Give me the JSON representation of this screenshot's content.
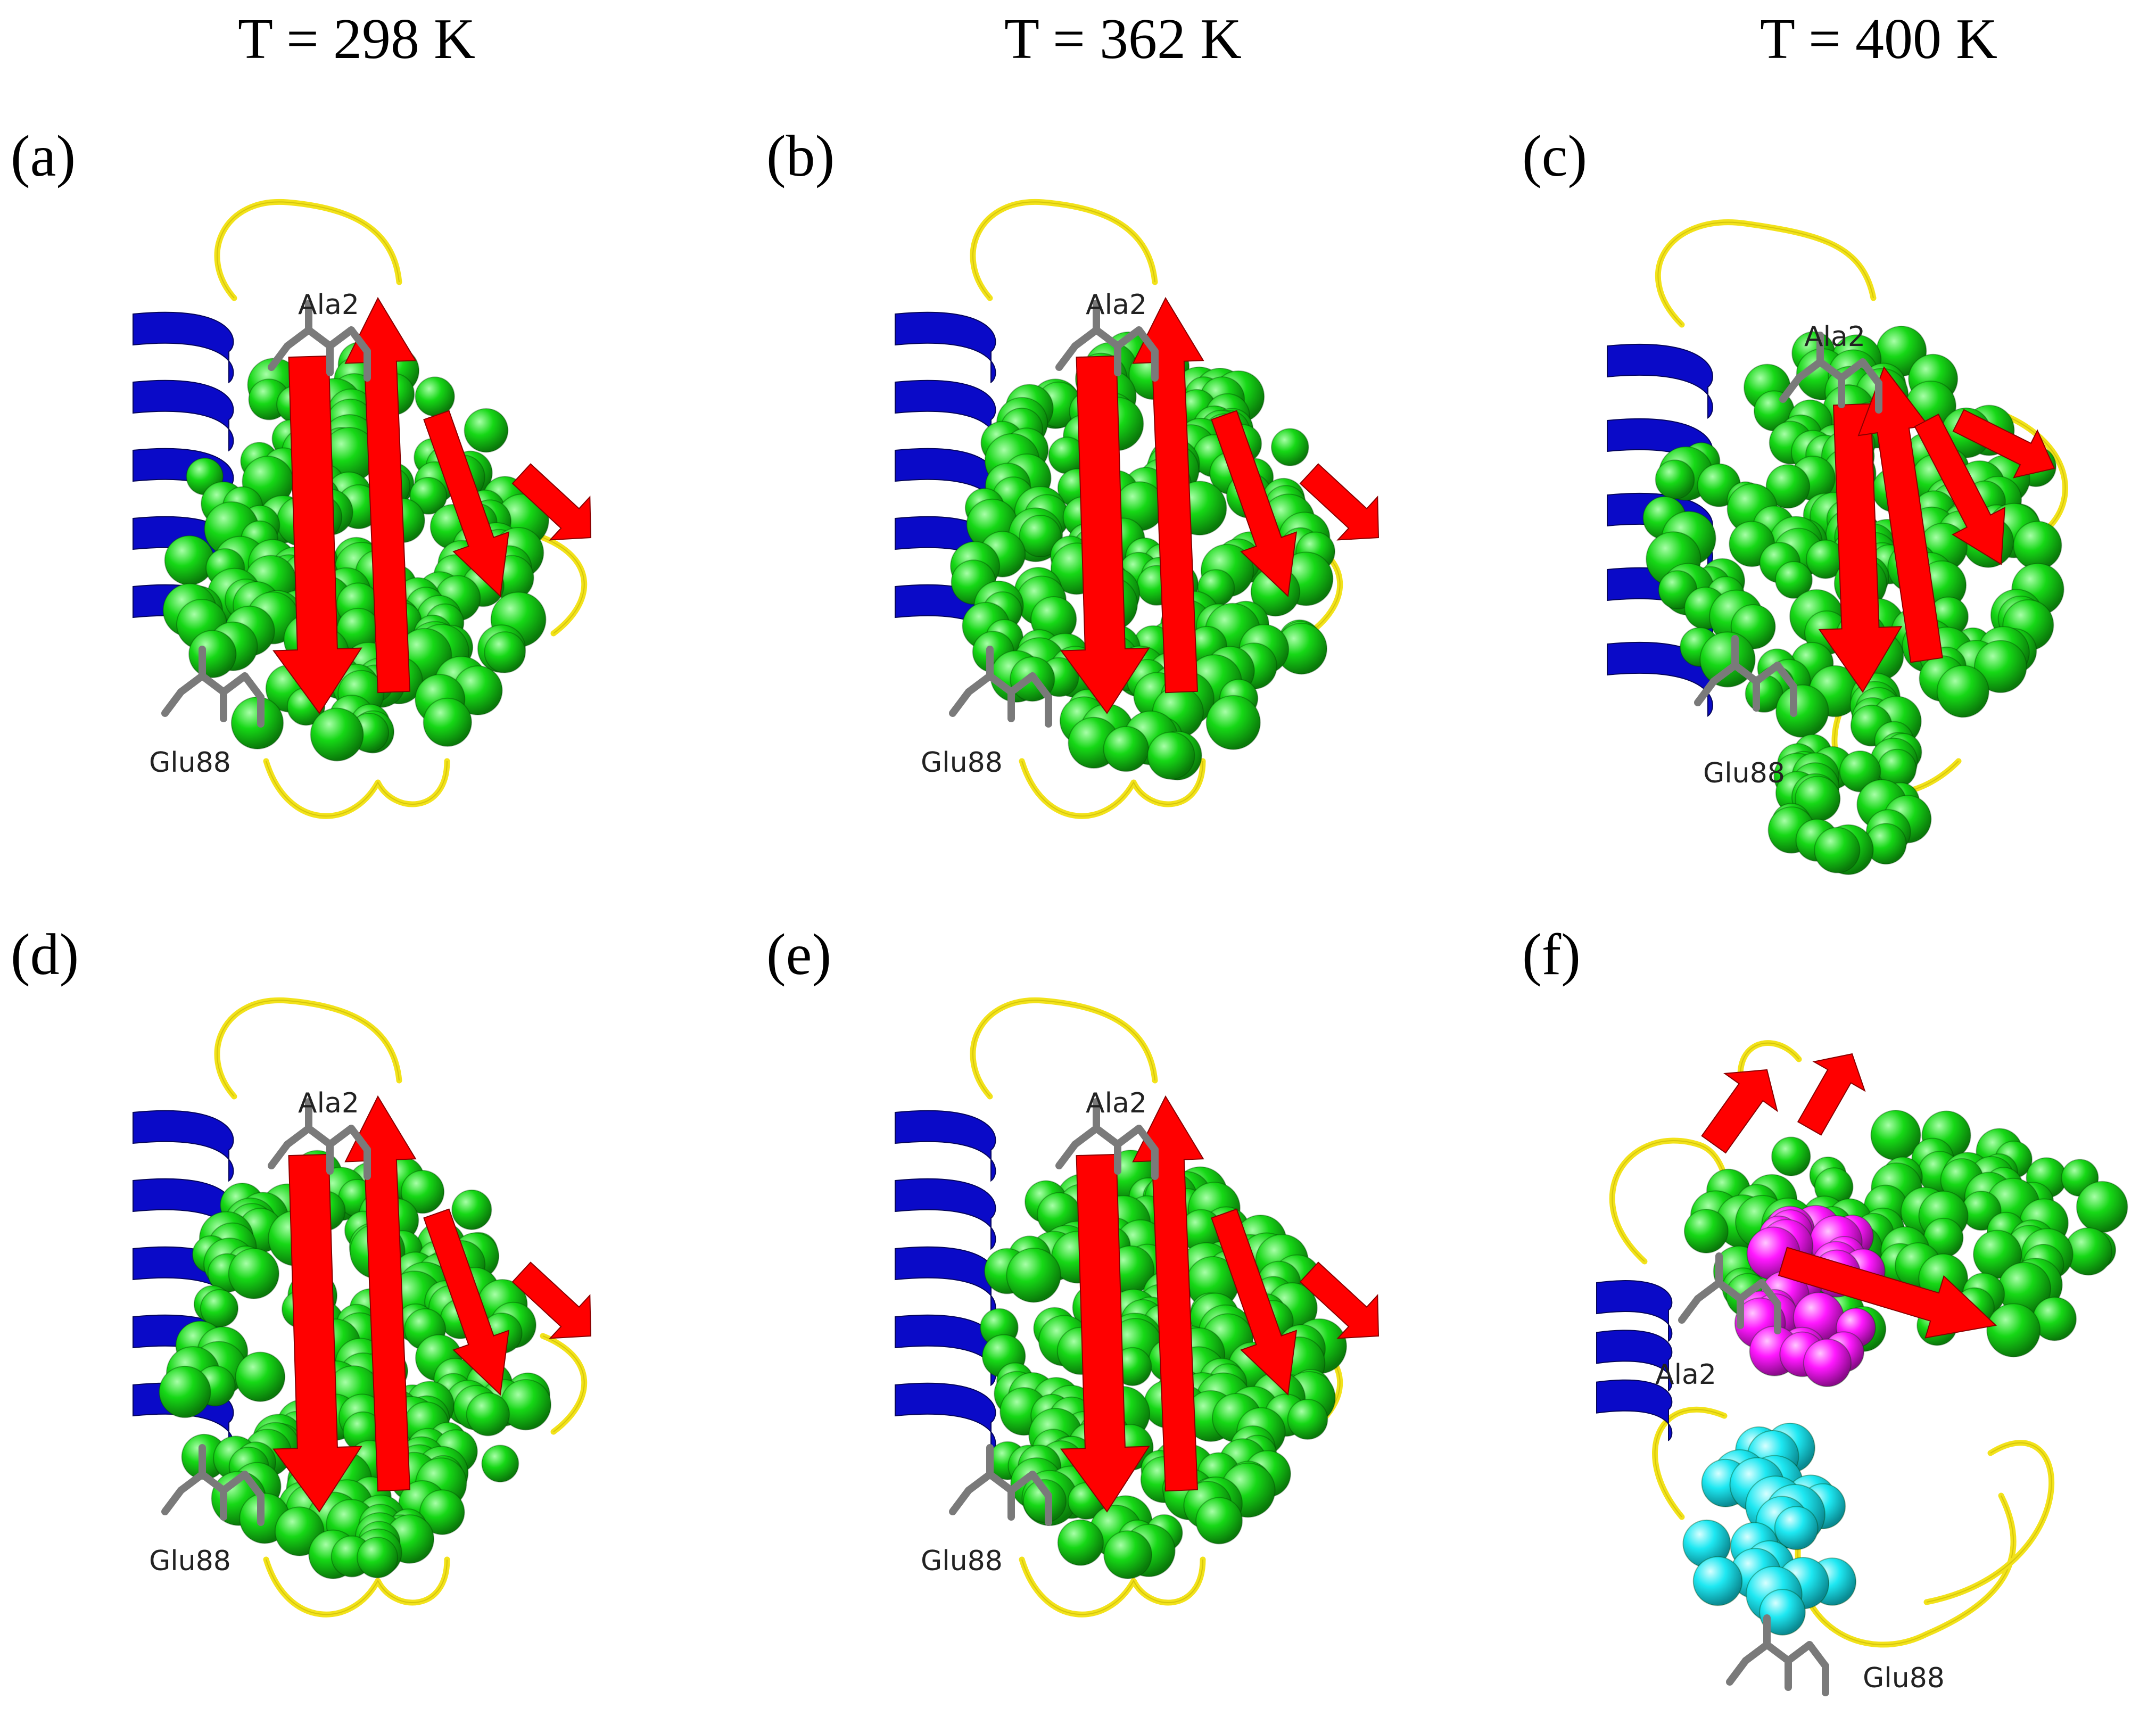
{
  "columns": [
    {
      "label": "T = 298 K"
    },
    {
      "label": "T = 362 K"
    },
    {
      "label": "T = 400 K"
    }
  ],
  "panels": [
    {
      "label": "(a)",
      "residue_top": "Ala2",
      "residue_bottom": "Glu88"
    },
    {
      "label": "(b)",
      "residue_top": "Ala2",
      "residue_bottom": "Glu88"
    },
    {
      "label": "(c)",
      "residue_top": "Ala2",
      "residue_bottom": "Glu88"
    },
    {
      "label": "(d)",
      "residue_top": "Ala2",
      "residue_bottom": "Glu88"
    },
    {
      "label": "(e)",
      "residue_top": "Ala2",
      "residue_bottom": "Glu88"
    },
    {
      "label": "(f)",
      "residue_top": "Ala2",
      "residue_bottom": "Glu88"
    }
  ],
  "colors": {
    "helix": "#0a0ac8",
    "strand": "#ff0000",
    "loop": "#f2e21a",
    "core_spheres": "#16d816",
    "sticks": "#7a7a7a",
    "magenta_cluster": "#ff18ff",
    "cyan_cluster": "#1ee8f2"
  }
}
